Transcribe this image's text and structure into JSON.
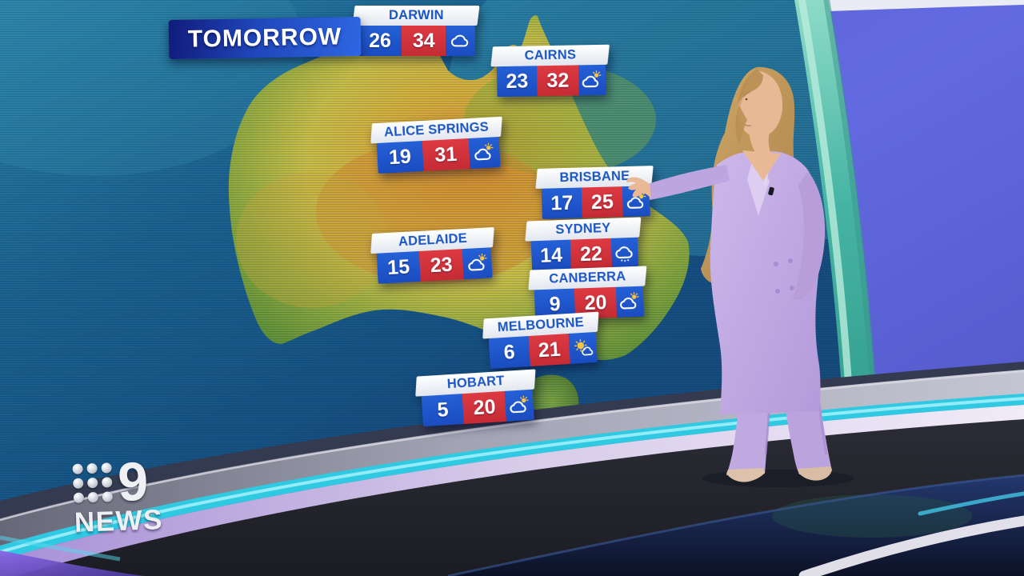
{
  "banner": {
    "label": "TOMORROW"
  },
  "brand": {
    "network_number": "9",
    "news_label": "NEWS"
  },
  "cities": [
    {
      "name": "DARWIN",
      "min": "26",
      "max": "34",
      "icon": "cloudy"
    },
    {
      "name": "CAIRNS",
      "min": "23",
      "max": "32",
      "icon": "partly-sunny"
    },
    {
      "name": "ALICE SPRINGS",
      "min": "19",
      "max": "31",
      "icon": "partly-sunny"
    },
    {
      "name": "BRISBANE",
      "min": "17",
      "max": "25",
      "icon": "partly-sunny"
    },
    {
      "name": "ADELAIDE",
      "min": "15",
      "max": "23",
      "icon": "partly-sunny"
    },
    {
      "name": "SYDNEY",
      "min": "14",
      "max": "22",
      "icon": "showers"
    },
    {
      "name": "CANBERRA",
      "min": "9",
      "max": "20",
      "icon": "partly-sunny"
    },
    {
      "name": "MELBOURNE",
      "min": "6",
      "max": "21",
      "icon": "mostly-sunny"
    },
    {
      "name": "HOBART",
      "min": "5",
      "max": "20",
      "icon": "partly-sunny"
    }
  ],
  "colors": {
    "temp_min_bg": "#1e53cc",
    "temp_max_bg": "#d4343c",
    "card_header_text": "#1a56c6",
    "banner_dark": "#111b7a",
    "banner_bright": "#2e66e2",
    "studio_wall": "#5a62d8",
    "screen_rim_teal": "#46b4a4",
    "stripe_cyan": "#3fd9ea",
    "ocean_deep": "#154e80",
    "land_green": "#6f9c3a",
    "land_orange": "#cf8a2f"
  }
}
